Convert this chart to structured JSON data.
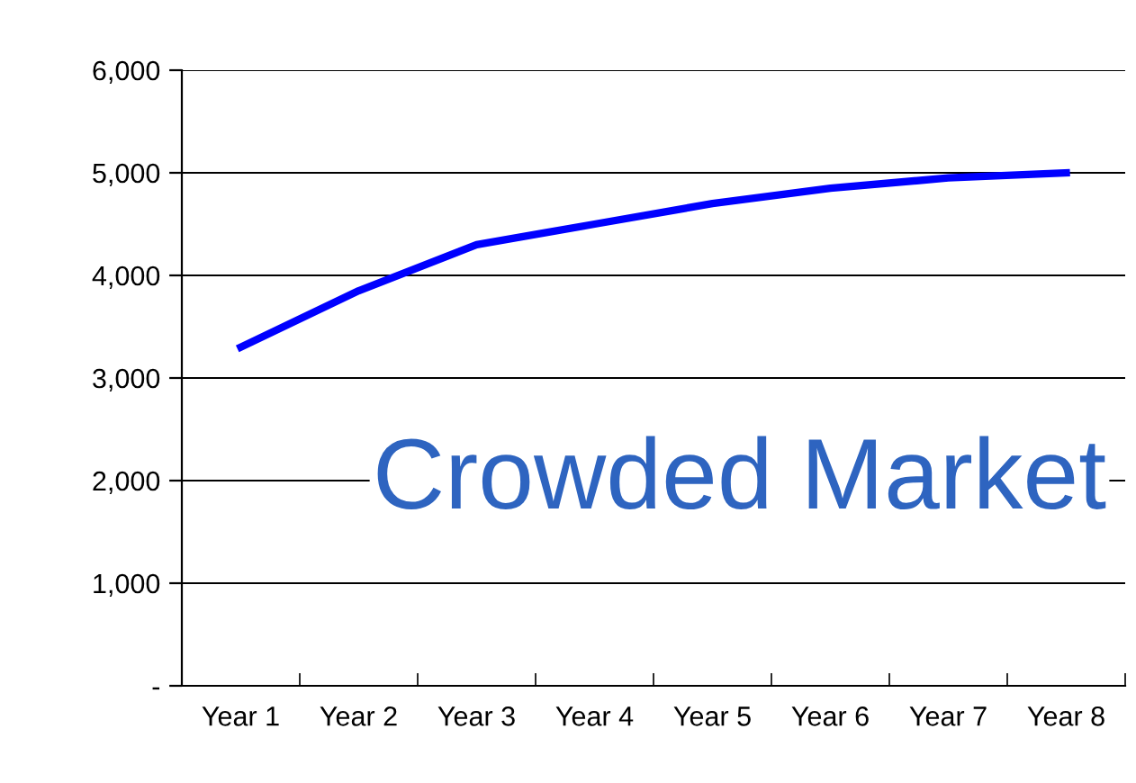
{
  "chart_data": {
    "type": "line",
    "categories": [
      "Year 1",
      "Year 2",
      "Year 3",
      "Year 4",
      "Year 5",
      "Year 6",
      "Year 7",
      "Year 8"
    ],
    "series": [
      {
        "color": "#0000ff",
        "values": [
          3300,
          3850,
          4300,
          4500,
          4700,
          4850,
          4950,
          5000
        ]
      }
    ],
    "ylim": [
      0,
      6000
    ],
    "yticks": [
      {
        "value": 0,
        "label": "-"
      },
      {
        "value": 1000,
        "label": "1,000"
      },
      {
        "value": 2000,
        "label": "2,000"
      },
      {
        "value": 3000,
        "label": "3,000"
      },
      {
        "value": 4000,
        "label": "4,000"
      },
      {
        "value": 5000,
        "label": "5,000"
      },
      {
        "value": 6000,
        "label": "6,000"
      }
    ],
    "grid": "y",
    "legend": false,
    "marker": "none",
    "line_style": "solid",
    "annotations": [
      "Crowded Market"
    ]
  }
}
